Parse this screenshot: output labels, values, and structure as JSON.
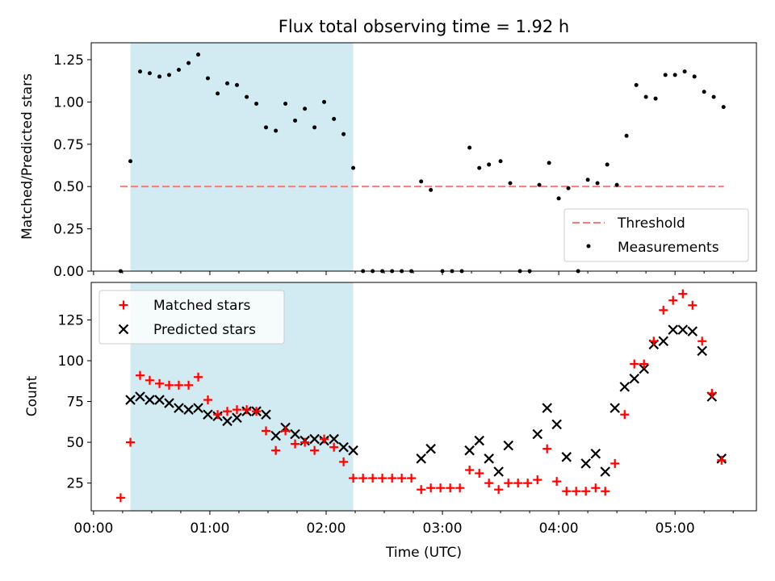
{
  "title": "Flux total observing time = 1.92 h",
  "colors": {
    "highlight": "#add8e6",
    "threshold": "#ff7777",
    "matched": "#ff0000",
    "predicted": "#000000",
    "measurement": "#000000"
  },
  "chart_data": [
    {
      "type": "scatter",
      "panel": "top",
      "ylabel": "Matched/Predicted stars",
      "xlabel": "",
      "xlim": [
        -0.02,
        5.7
      ],
      "ylim": [
        0,
        1.35
      ],
      "yticks": [
        "0.00",
        "0.25",
        "0.50",
        "0.75",
        "1.00",
        "1.25"
      ],
      "highlight_span": [
        0.317,
        2.233
      ],
      "threshold": {
        "name": "Threshold",
        "y": 0.5,
        "x": [
          0.23,
          5.42
        ]
      },
      "legend": {
        "position": "bottom-right",
        "entries": [
          "Threshold",
          "Measurements"
        ]
      },
      "series": [
        {
          "name": "Measurements",
          "x": [
            0.233,
            0.317,
            0.4,
            0.483,
            0.567,
            0.65,
            0.733,
            0.817,
            0.9,
            0.983,
            1.067,
            1.15,
            1.233,
            1.317,
            1.4,
            1.483,
            1.567,
            1.65,
            1.733,
            1.817,
            1.9,
            1.983,
            2.067,
            2.15,
            2.233,
            2.317,
            2.4,
            2.483,
            2.567,
            2.65,
            2.733,
            2.817,
            2.9,
            3.0,
            3.083,
            3.167,
            3.233,
            3.317,
            3.4,
            3.5,
            3.583,
            3.667,
            3.75,
            3.833,
            3.917,
            4.0,
            4.083,
            4.167,
            4.25,
            4.333,
            4.417,
            4.5,
            4.583,
            4.667,
            4.75,
            4.833,
            4.917,
            5.0,
            5.083,
            5.167,
            5.25,
            5.333,
            5.417
          ],
          "y": [
            0.0,
            0.65,
            1.18,
            1.17,
            1.15,
            1.16,
            1.19,
            1.23,
            1.28,
            1.14,
            1.05,
            1.11,
            1.1,
            1.03,
            0.99,
            0.85,
            0.83,
            0.99,
            0.89,
            0.96,
            0.85,
            1.0,
            0.9,
            0.81,
            0.61,
            0.0,
            0.0,
            0.0,
            0.0,
            0.0,
            0.0,
            0.53,
            0.48,
            0.0,
            0.0,
            0.0,
            0.73,
            0.61,
            0.63,
            0.65,
            0.52,
            0.0,
            0.0,
            0.51,
            0.64,
            0.43,
            0.49,
            0.0,
            0.54,
            0.52,
            0.63,
            0.51,
            0.8,
            1.1,
            1.03,
            1.02,
            1.16,
            1.16,
            1.18,
            1.15,
            1.06,
            1.03,
            0.97
          ]
        }
      ]
    },
    {
      "type": "scatter",
      "panel": "bottom",
      "ylabel": "Count",
      "xlabel": "Time (UTC)",
      "xlim": [
        -0.02,
        5.7
      ],
      "ylim": [
        8,
        148
      ],
      "yticks": [
        "25",
        "50",
        "75",
        "100",
        "125"
      ],
      "xticks": [
        "00:00",
        "01:00",
        "02:00",
        "03:00",
        "04:00",
        "05:00"
      ],
      "highlight_span": [
        0.317,
        2.233
      ],
      "legend": {
        "position": "top-left",
        "entries": [
          "Matched stars",
          "Predicted stars"
        ]
      },
      "series": [
        {
          "name": "Matched stars",
          "marker": "+",
          "x": [
            0.233,
            0.317,
            0.4,
            0.483,
            0.567,
            0.65,
            0.733,
            0.817,
            0.9,
            0.983,
            1.067,
            1.15,
            1.233,
            1.317,
            1.4,
            1.483,
            1.567,
            1.65,
            1.733,
            1.817,
            1.9,
            1.983,
            2.067,
            2.15,
            2.233,
            2.317,
            2.4,
            2.483,
            2.567,
            2.65,
            2.733,
            2.817,
            2.9,
            2.983,
            3.067,
            3.15,
            3.233,
            3.317,
            3.4,
            3.483,
            3.567,
            3.65,
            3.733,
            3.817,
            3.9,
            3.983,
            4.067,
            4.15,
            4.233,
            4.317,
            4.4,
            4.483,
            4.567,
            4.65,
            4.733,
            4.817,
            4.9,
            4.983,
            5.067,
            5.15,
            5.233,
            5.317,
            5.4
          ],
          "y": [
            16,
            50,
            91,
            88,
            86,
            85,
            85,
            85,
            90,
            76,
            67,
            69,
            70,
            70,
            69,
            57,
            45,
            57,
            49,
            50,
            45,
            52,
            47,
            38,
            28,
            28,
            28,
            28,
            28,
            28,
            28,
            21,
            22,
            22,
            22,
            22,
            33,
            31,
            25,
            21,
            25,
            25,
            25,
            27,
            46,
            26,
            20,
            20,
            20,
            22,
            20,
            37,
            67,
            98,
            98,
            112,
            131,
            137,
            141,
            134,
            112,
            80,
            39
          ]
        },
        {
          "name": "Predicted stars",
          "marker": "x",
          "x": [
            0.317,
            0.4,
            0.483,
            0.567,
            0.65,
            0.733,
            0.817,
            0.9,
            0.983,
            1.067,
            1.15,
            1.233,
            1.317,
            1.4,
            1.483,
            1.567,
            1.65,
            1.733,
            1.817,
            1.9,
            1.983,
            2.067,
            2.15,
            2.233,
            2.817,
            2.9,
            3.233,
            3.317,
            3.4,
            3.483,
            3.567,
            3.817,
            3.9,
            3.983,
            4.067,
            4.233,
            4.317,
            4.4,
            4.483,
            4.567,
            4.65,
            4.733,
            4.817,
            4.9,
            4.983,
            5.067,
            5.15,
            5.233,
            5.317,
            5.4
          ],
          "y": [
            76,
            78,
            76,
            76,
            74,
            71,
            70,
            71,
            67,
            66,
            63,
            65,
            69,
            69,
            67,
            54,
            59,
            55,
            51,
            52,
            51,
            52,
            47,
            45,
            40,
            46,
            45,
            51,
            40,
            32,
            48,
            55,
            71,
            61,
            41,
            37,
            43,
            32,
            71,
            84,
            89,
            95,
            110,
            112,
            119,
            119,
            118,
            106,
            78,
            40
          ]
        }
      ]
    }
  ]
}
